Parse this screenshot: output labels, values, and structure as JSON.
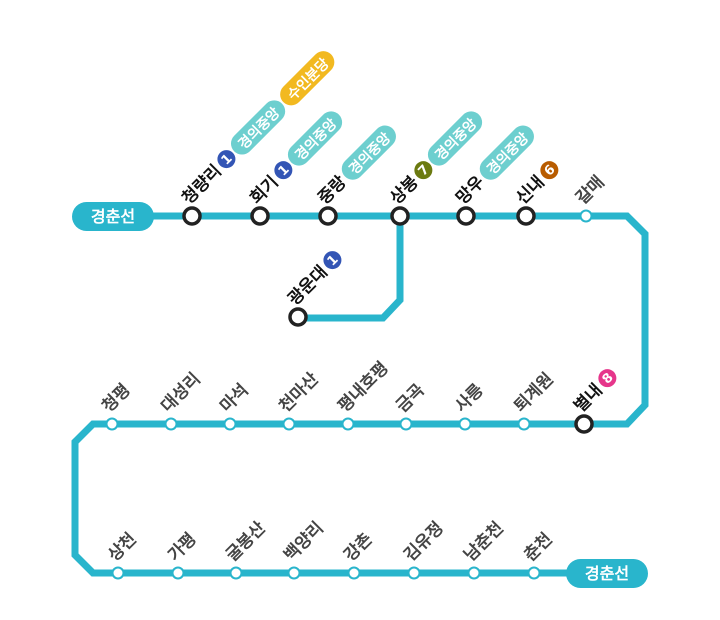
{
  "line": {
    "name": "경춘선",
    "color": "#29b5cc",
    "start_terminal_label": "경춘선",
    "end_terminal_label": "경춘선"
  },
  "transfer_lines": {
    "1": {
      "label": "1",
      "color": "#3355b5",
      "shape": "circle"
    },
    "6": {
      "label": "6",
      "color": "#b85c00",
      "shape": "circle"
    },
    "7": {
      "label": "7",
      "color": "#6b7a10",
      "shape": "circle"
    },
    "8": {
      "label": "8",
      "color": "#e6368b",
      "shape": "circle"
    },
    "gyeongui": {
      "label": "경의중앙",
      "color": "#6dcfcf",
      "shape": "pill"
    },
    "suin": {
      "label": "수인분당",
      "color": "#f2b920",
      "shape": "pill"
    }
  },
  "rows": [
    {
      "stations": [
        {
          "name": "청량리",
          "transfer": [
            "1",
            "gyeongui",
            "suin"
          ]
        },
        {
          "name": "회기",
          "transfer": [
            "1",
            "gyeongui"
          ]
        },
        {
          "name": "중랑",
          "transfer": [
            "gyeongui"
          ]
        },
        {
          "name": "상봉",
          "transfer": [
            "7",
            "gyeongui"
          ]
        },
        {
          "name": "망우",
          "transfer": [
            "gyeongui"
          ]
        },
        {
          "name": "신내",
          "transfer": [
            "6"
          ]
        },
        {
          "name": "갈매",
          "transfer": []
        }
      ]
    },
    {
      "stations": [
        {
          "name": "청평",
          "transfer": []
        },
        {
          "name": "대성리",
          "transfer": []
        },
        {
          "name": "마석",
          "transfer": []
        },
        {
          "name": "천마산",
          "transfer": []
        },
        {
          "name": "평내호평",
          "transfer": []
        },
        {
          "name": "금곡",
          "transfer": []
        },
        {
          "name": "사릉",
          "transfer": []
        },
        {
          "name": "퇴계원",
          "transfer": []
        },
        {
          "name": "별내",
          "transfer": [
            "8"
          ]
        }
      ]
    },
    {
      "stations": [
        {
          "name": "상천",
          "transfer": []
        },
        {
          "name": "가평",
          "transfer": []
        },
        {
          "name": "굴봉산",
          "transfer": []
        },
        {
          "name": "백양리",
          "transfer": []
        },
        {
          "name": "강촌",
          "transfer": []
        },
        {
          "name": "김유정",
          "transfer": []
        },
        {
          "name": "남춘천",
          "transfer": []
        },
        {
          "name": "춘천",
          "transfer": []
        }
      ]
    }
  ],
  "branch": {
    "stations": [
      {
        "name": "광운대",
        "transfer": [
          "1"
        ]
      }
    ]
  }
}
